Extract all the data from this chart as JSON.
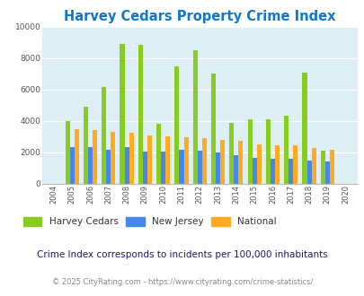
{
  "title": "Harvey Cedars Property Crime Index",
  "years": [
    2004,
    2005,
    2006,
    2007,
    2008,
    2009,
    2010,
    2011,
    2012,
    2013,
    2014,
    2015,
    2016,
    2017,
    2018,
    2019,
    2020
  ],
  "harvey_cedars": [
    0,
    4000,
    4900,
    6150,
    8900,
    8850,
    3800,
    7450,
    8500,
    7000,
    3850,
    4100,
    4100,
    4350,
    7050,
    2100,
    0
  ],
  "new_jersey": [
    0,
    2300,
    2300,
    2150,
    2300,
    2050,
    2050,
    2150,
    2100,
    1950,
    1800,
    1650,
    1600,
    1600,
    1450,
    1400,
    0
  ],
  "national": [
    0,
    3450,
    3400,
    3300,
    3250,
    3050,
    3000,
    2950,
    2900,
    2800,
    2750,
    2500,
    2450,
    2450,
    2250,
    2150,
    0
  ],
  "bar_width": 0.25,
  "colors": {
    "harvey_cedars": "#88cc22",
    "new_jersey": "#4488ee",
    "national": "#ffaa22"
  },
  "ylim": [
    0,
    10000
  ],
  "yticks": [
    0,
    2000,
    4000,
    6000,
    8000,
    10000
  ],
  "plot_bg": "#ddeef5",
  "title_color": "#1177cc",
  "axis_color": "#555555",
  "legend_labels": [
    "Harvey Cedars",
    "New Jersey",
    "National"
  ],
  "note": "Crime Index corresponds to incidents per 100,000 inhabitants",
  "footer": "© 2025 CityRating.com - https://www.cityrating.com/crime-statistics/",
  "note_color": "#1a1a6e",
  "footer_color": "#888888",
  "footer_link_color": "#4488ee"
}
